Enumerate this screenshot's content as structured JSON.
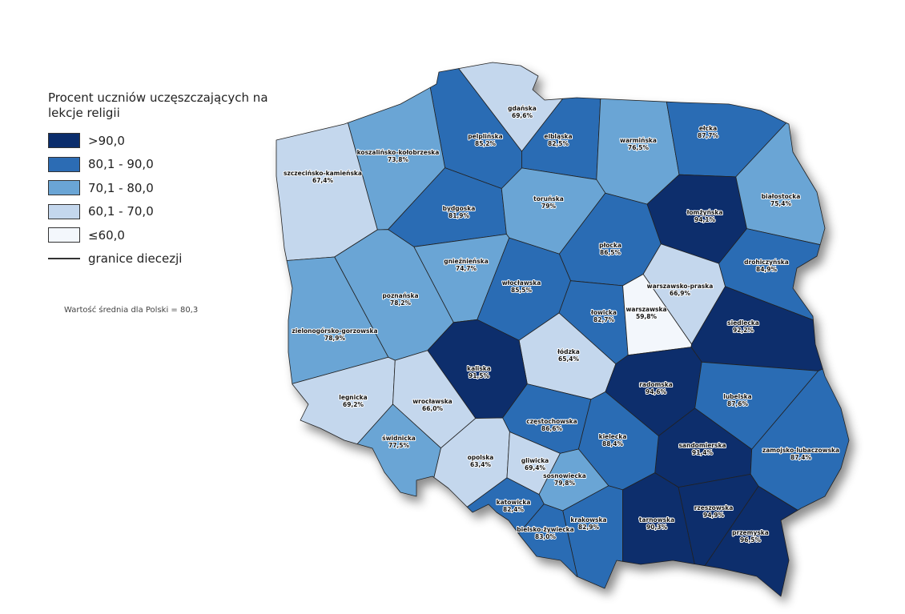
{
  "legend": {
    "title": "Procent uczniów uczęszczających na lekcje religii",
    "items": [
      {
        "label": ">90,0",
        "color": "#0b2d6c",
        "above": 90
      },
      {
        "label": "80,1 - 90,0",
        "color": "#2c6cb4",
        "above": 80
      },
      {
        "label": "70,1 - 80,0",
        "color": "#6aa5d5",
        "above": 70
      },
      {
        "label": "60,1 - 70,0",
        "color": "#c4d7ed",
        "above": 60
      },
      {
        "label": "≤60,0",
        "color": "#f3f7fc"
      }
    ],
    "boundary_label": "granice diecezji"
  },
  "note": "Wartość średnia dla Polski = 80,3",
  "regions": [
    {
      "name": "gdańska",
      "value": 69.6,
      "value_label": "69,6%"
    },
    {
      "name": "pelplińska",
      "value": 85.2,
      "value_label": "85,2%"
    },
    {
      "name": "elbląska",
      "value": 82.5,
      "value_label": "82,5%"
    },
    {
      "name": "warmińska",
      "value": 76.5,
      "value_label": "76,5%"
    },
    {
      "name": "ełcka",
      "value": 87.7,
      "value_label": "87,7%"
    },
    {
      "name": "koszalińsko-kołobrzeska",
      "value": 73.8,
      "value_label": "73,8%"
    },
    {
      "name": "szczecińsko-kamieńska",
      "value": 67.4,
      "value_label": "67,4%"
    },
    {
      "name": "bydgoska",
      "value": 81.9,
      "value_label": "81,9%"
    },
    {
      "name": "toruńska",
      "value": 79,
      "value_label": "79%"
    },
    {
      "name": "łomżyńska",
      "value": 94.1,
      "value_label": "94,1%"
    },
    {
      "name": "białostocka",
      "value": 75.4,
      "value_label": "75,4%"
    },
    {
      "name": "drohiczyńska",
      "value": 84.9,
      "value_label": "84,9%"
    },
    {
      "name": "gnieźnieńska",
      "value": 74.7,
      "value_label": "74,7%"
    },
    {
      "name": "płocka",
      "value": 86.5,
      "value_label": "86,5%"
    },
    {
      "name": "włocławska",
      "value": 85.5,
      "value_label": "85,5%"
    },
    {
      "name": "warszawsko-praska",
      "value": 66.9,
      "value_label": "66,9%"
    },
    {
      "name": "poznańska",
      "value": 78.2,
      "value_label": "78,2%"
    },
    {
      "name": "łowicka",
      "value": 82.7,
      "value_label": "82,7%"
    },
    {
      "name": "warszawska",
      "value": 59.8,
      "value_label": "59,8%"
    },
    {
      "name": "siedlecka",
      "value": 92.2,
      "value_label": "92,2%"
    },
    {
      "name": "zielonogórsko-gorzowska",
      "value": 78.9,
      "value_label": "78,9%"
    },
    {
      "name": "łódzka",
      "value": 65.4,
      "value_label": "65,4%"
    },
    {
      "name": "kaliska",
      "value": 91.5,
      "value_label": "91,5%"
    },
    {
      "name": "radomska",
      "value": 94.6,
      "value_label": "94,6%"
    },
    {
      "name": "lubelska",
      "value": 87.6,
      "value_label": "87,6%"
    },
    {
      "name": "legnicka",
      "value": 69.2,
      "value_label": "69,2%"
    },
    {
      "name": "wrocławska",
      "value": 66.0,
      "value_label": "66,0%"
    },
    {
      "name": "częstochowska",
      "value": 86.6,
      "value_label": "86,6%"
    },
    {
      "name": "świdnicka",
      "value": 77.5,
      "value_label": "77,5%"
    },
    {
      "name": "sandomierska",
      "value": 91.4,
      "value_label": "91,4%"
    },
    {
      "name": "zamojsko-lubaczowska",
      "value": 87.4,
      "value_label": "87,4%"
    },
    {
      "name": "kielecka",
      "value": 88.4,
      "value_label": "88,4%"
    },
    {
      "name": "opolska",
      "value": 63.4,
      "value_label": "63,4%"
    },
    {
      "name": "gliwicka",
      "value": 69.4,
      "value_label": "69,4%"
    },
    {
      "name": "sosnowiecka",
      "value": 79.8,
      "value_label": "79,8%"
    },
    {
      "name": "katowicka",
      "value": 82.4,
      "value_label": "82,4%"
    },
    {
      "name": "krakowska",
      "value": 82.9,
      "value_label": "82,9%"
    },
    {
      "name": "tarnowska",
      "value": 90.3,
      "value_label": "90,3%"
    },
    {
      "name": "rzeszowska",
      "value": 94.9,
      "value_label": "94,9%"
    },
    {
      "name": "przemyska",
      "value": 96.5,
      "value_label": "96,5%"
    },
    {
      "name": "bielsko-żywiecka",
      "value": 83.0,
      "value_label": "83,0%"
    }
  ]
}
